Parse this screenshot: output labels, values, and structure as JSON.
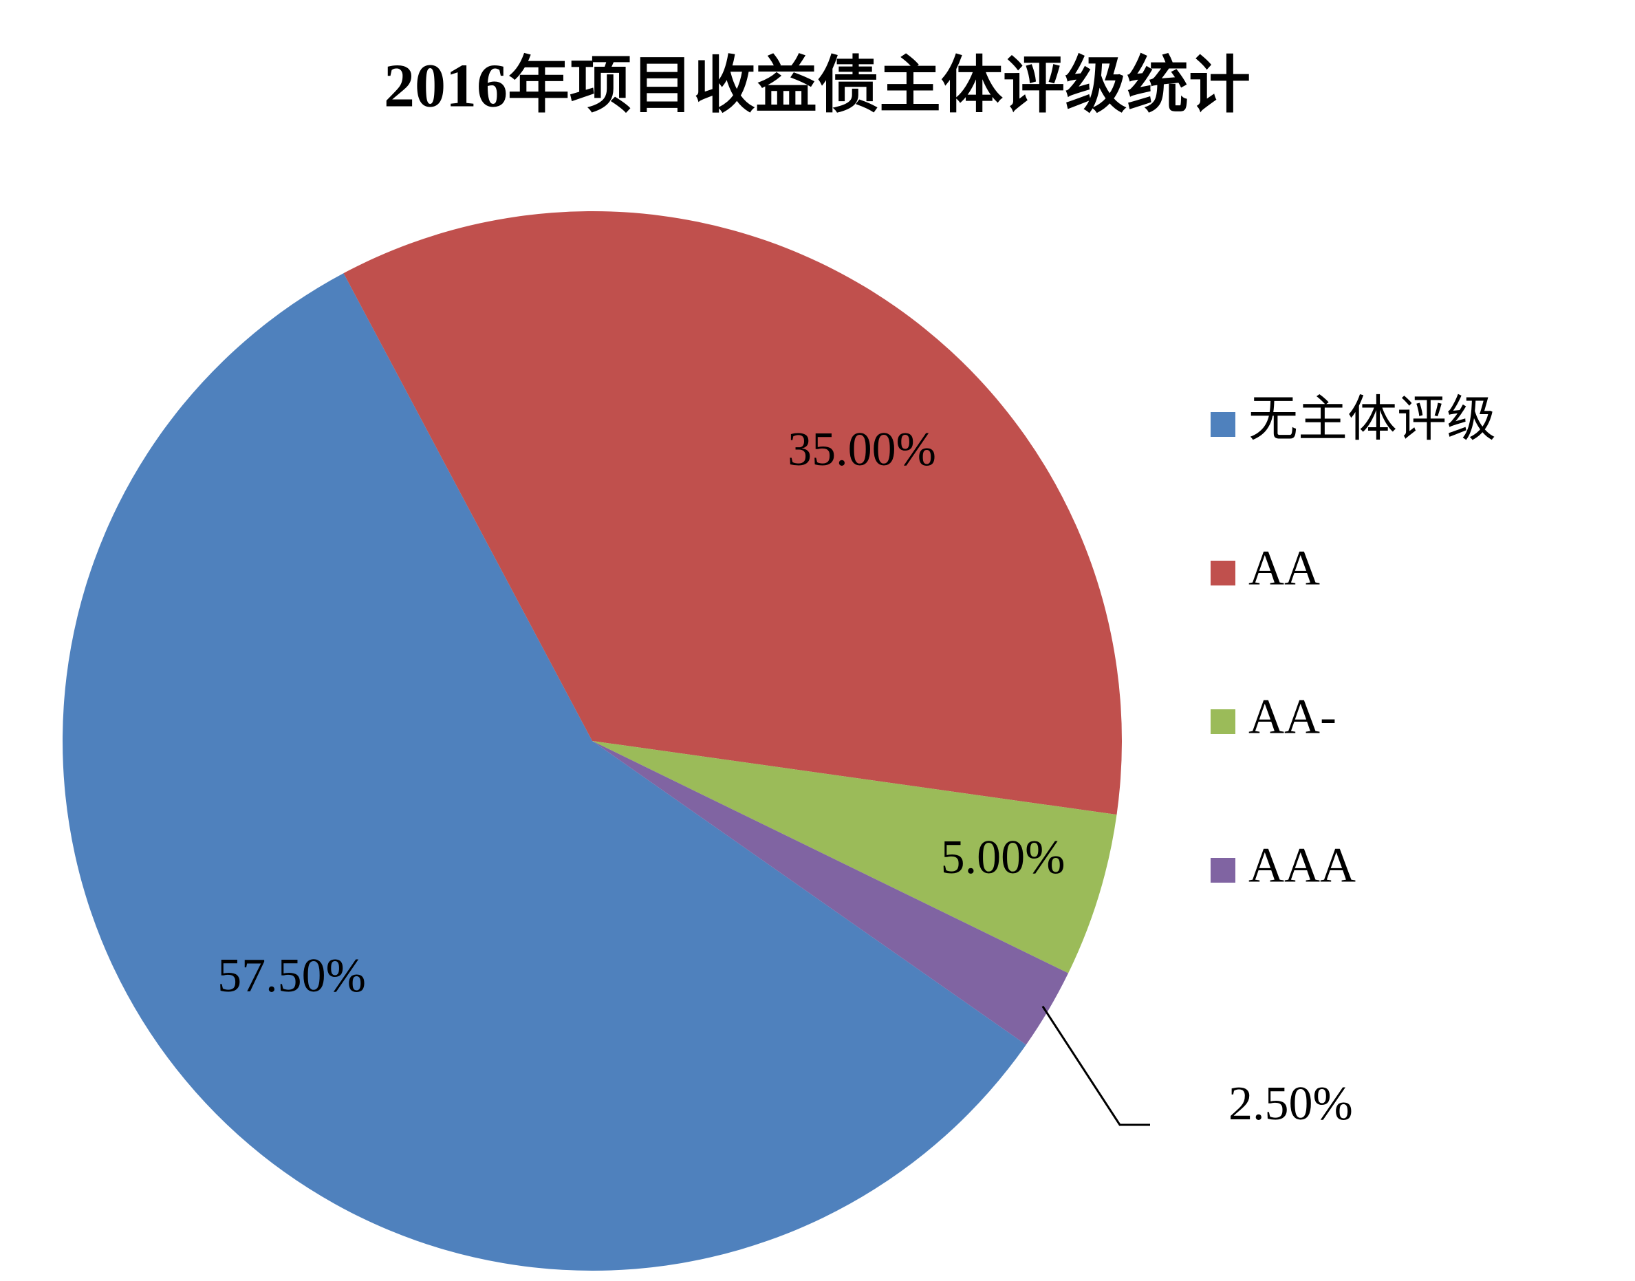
{
  "chart_data": {
    "type": "pie",
    "title": "2016年项目收益债主体评级统计",
    "categories": [
      "无主体评级",
      "AA",
      "AA-",
      "AAA"
    ],
    "values": [
      57.5,
      35,
      5,
      2.5
    ],
    "value_labels": [
      "57.50%",
      "35.00%",
      "5.00%",
      "2.50%"
    ],
    "colors": [
      "#4f81bd",
      "#c0504d",
      "#9bbb59",
      "#8064a2"
    ],
    "legend": "right"
  }
}
